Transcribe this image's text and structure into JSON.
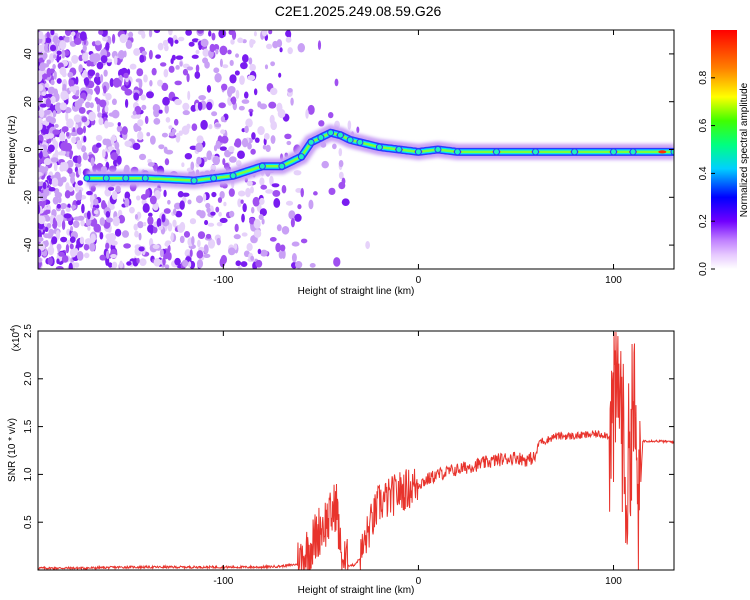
{
  "title": "C2E1.2025.249.08.59.G26",
  "chart_data": [
    {
      "type": "heatmap",
      "title": "C2E1.2025.249.08.59.G26",
      "xlabel": "Height of straight line (km)",
      "ylabel": "Frequency (Hz)",
      "xlim": [
        -195,
        131
      ],
      "ylim": [
        -50,
        50
      ],
      "xticks": [
        -100,
        0,
        100
      ],
      "yticks": [
        -40,
        -20,
        0,
        20,
        40
      ],
      "colorbar": {
        "label": "Normalized spectral amplitude",
        "range": [
          0.0,
          1.0
        ],
        "ticks": [
          0.0,
          0.2,
          0.4,
          0.6,
          0.8
        ],
        "tick_labels": [
          "0.0",
          "0.2",
          "0.4",
          "0.6",
          "0.8"
        ]
      },
      "ridge": {
        "heights": [
          -170,
          -160,
          -150,
          -140,
          -115,
          -105,
          -95,
          -80,
          -70,
          -60,
          -55,
          -50,
          -45,
          -40,
          -35,
          -30,
          -20,
          -10,
          0,
          10,
          20,
          40,
          60,
          80,
          100,
          110,
          131
        ],
        "frequency": [
          -12,
          -12,
          -12,
          -12,
          -13,
          -12,
          -11,
          -7,
          -7,
          -3,
          3,
          5,
          7,
          6,
          4,
          3,
          1,
          0,
          -1,
          0,
          -1,
          -1,
          -1,
          -1,
          -1,
          -1,
          -1
        ]
      }
    },
    {
      "type": "line",
      "xlabel": "Height of straight line (km)",
      "ylabel": "SNR (10 * v/v)",
      "ylabel_multiplier": "(x10",
      "ylabel_exponent": "4",
      "xlim": [
        -195,
        131
      ],
      "ylim": [
        0,
        2.5
      ],
      "xticks": [
        -100,
        0,
        100
      ],
      "yticks": [
        0.5,
        1.0,
        1.5,
        2.0,
        2.5
      ],
      "ytick_labels": [
        "0.5",
        "1.0",
        "1.5",
        "2.0",
        "2.5"
      ],
      "color": "#e8332c",
      "series": [
        {
          "name": "SNR",
          "x": [
            -195,
            -170,
            -150,
            -120,
            -100,
            -80,
            -70,
            -62,
            -55,
            -50,
            -45,
            -42,
            -40,
            -38,
            -36,
            -33,
            -30,
            -25,
            -20,
            -15,
            -10,
            -5,
            0,
            10,
            20,
            30,
            40,
            50,
            55,
            60,
            62,
            65,
            70,
            80,
            90,
            95,
            98,
            100,
            103,
            105,
            107,
            110,
            112,
            113,
            115,
            120,
            131
          ],
          "y": [
            0.02,
            0.02,
            0.03,
            0.03,
            0.03,
            0.03,
            0.04,
            0.06,
            0.25,
            0.45,
            0.55,
            0.7,
            0.2,
            0.08,
            0.05,
            0.05,
            0.12,
            0.45,
            0.7,
            0.75,
            0.82,
            0.85,
            0.9,
            1.0,
            1.05,
            1.1,
            1.15,
            1.18,
            1.15,
            1.18,
            1.35,
            1.35,
            1.4,
            1.4,
            1.42,
            1.42,
            1.4,
            1.6,
            2.0,
            1.3,
            0.8,
            1.9,
            1.0,
            0.5,
            1.35,
            1.35,
            1.34
          ]
        }
      ]
    }
  ]
}
